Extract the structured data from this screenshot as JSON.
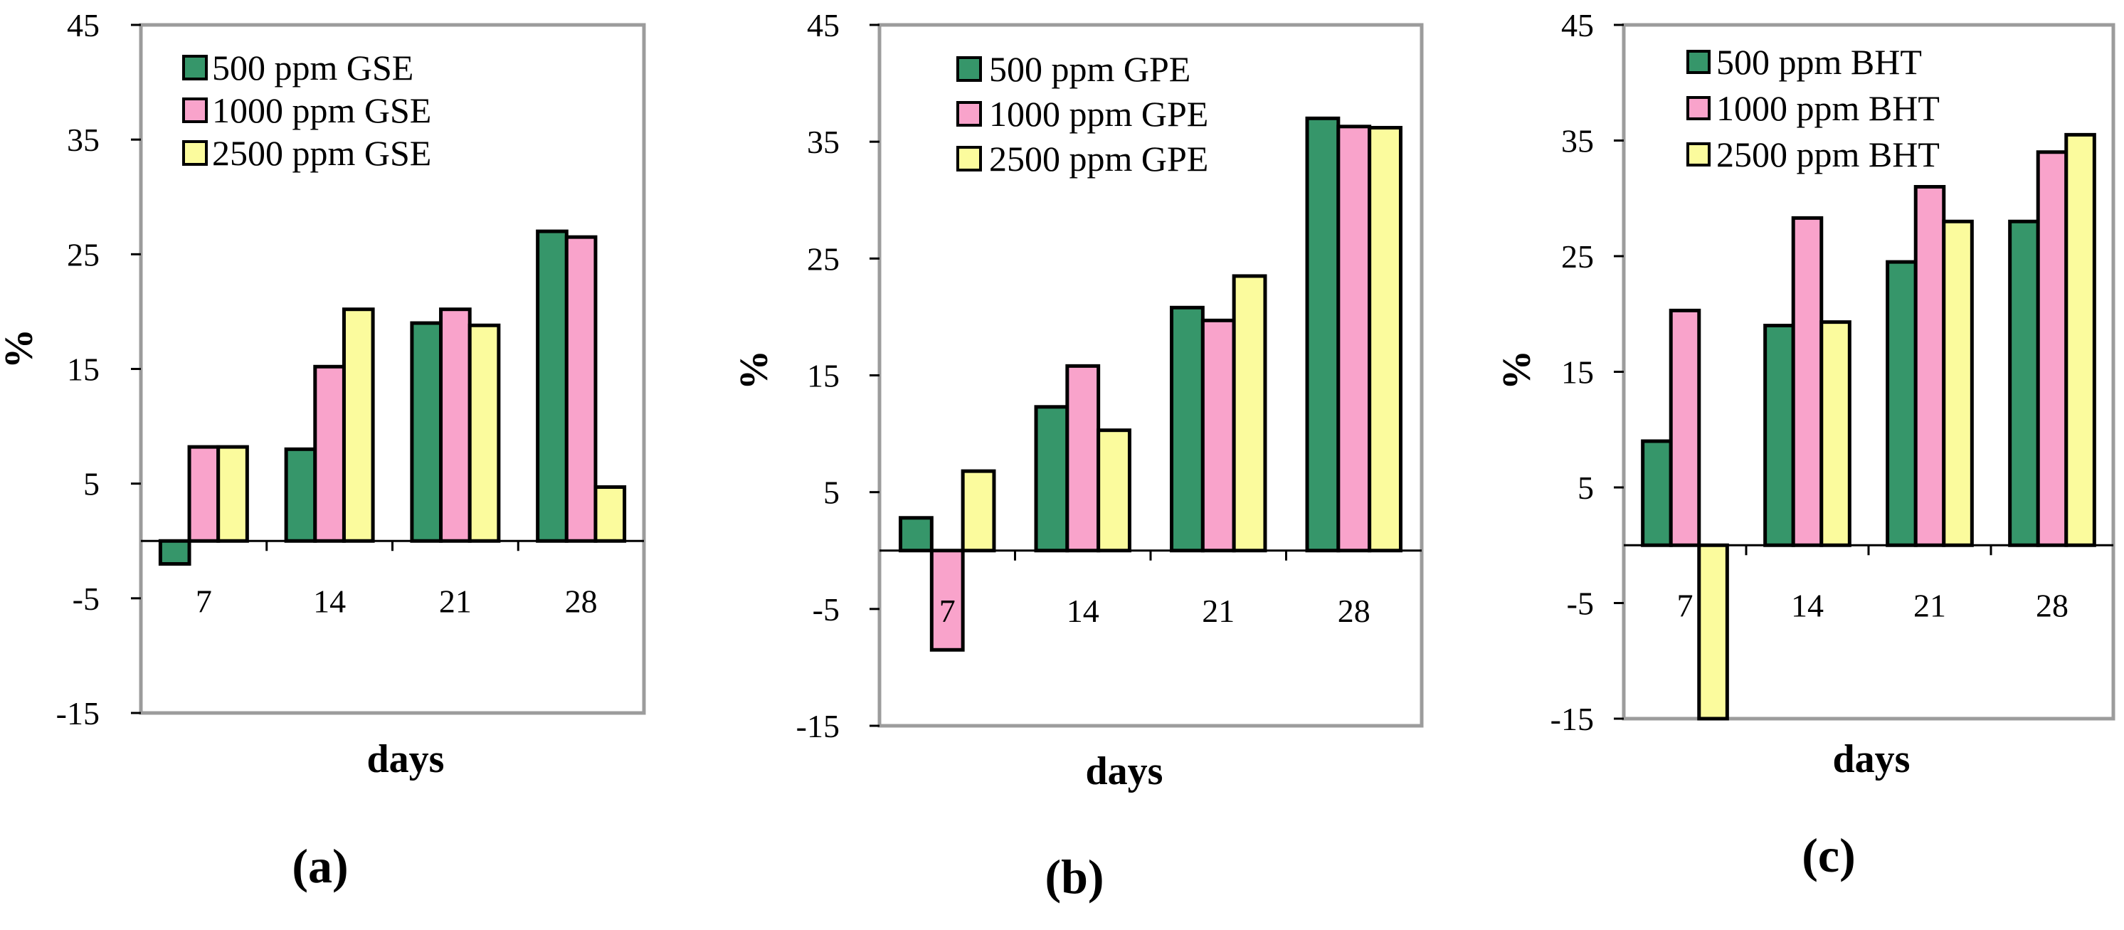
{
  "colors": {
    "series1": "#36966a",
    "series2": "#f9a3cb",
    "series3": "#fbfb9d",
    "frame": "#9c9c9c",
    "bar_outline": "#000000"
  },
  "chart_data": [
    {
      "type": "bar",
      "panel_label": "(a)",
      "xlabel": "days",
      "ylabel": "%",
      "ylim": [
        -15,
        45
      ],
      "yticks": [
        45,
        35,
        25,
        15,
        5,
        -5,
        -15
      ],
      "categories": [
        "7",
        "14",
        "21",
        "28"
      ],
      "legend_position": "top-left",
      "series": [
        {
          "name": "500 ppm GSE",
          "values": [
            -2,
            8,
            19,
            27
          ]
        },
        {
          "name": "1000 ppm GSE",
          "values": [
            8.2,
            15.2,
            20.2,
            26.5
          ]
        },
        {
          "name": "2500 ppm GSE",
          "values": [
            8.2,
            20.2,
            18.8,
            4.7
          ]
        }
      ]
    },
    {
      "type": "bar",
      "panel_label": "(b)",
      "xlabel": "days",
      "ylabel": "%",
      "ylim": [
        -15,
        45
      ],
      "yticks": [
        45,
        35,
        25,
        15,
        5,
        -5,
        -15
      ],
      "categories": [
        "7",
        "14",
        "21",
        "28"
      ],
      "legend_position": "top-left",
      "series": [
        {
          "name": "500 ppm GPE",
          "values": [
            2.8,
            12.3,
            20.8,
            37
          ]
        },
        {
          "name": "1000 ppm GPE",
          "values": [
            -8.5,
            15.8,
            19.7,
            36.3
          ]
        },
        {
          "name": "2500 ppm GPE",
          "values": [
            6.8,
            10.3,
            23.5,
            36.2
          ]
        }
      ]
    },
    {
      "type": "bar",
      "panel_label": "(c)",
      "xlabel": "days",
      "ylabel": "%",
      "ylim": [
        -15,
        45
      ],
      "yticks": [
        45,
        35,
        25,
        15,
        5,
        -5,
        -15
      ],
      "categories": [
        "7",
        "14",
        "21",
        "28"
      ],
      "legend_position": "top-left",
      "series": [
        {
          "name": "500 ppm BHT",
          "values": [
            9,
            19,
            24.5,
            28
          ]
        },
        {
          "name": "1000 ppm BHT",
          "values": [
            20.3,
            28.3,
            31,
            34
          ]
        },
        {
          "name": "2500 ppm BHT",
          "values": [
            -15,
            19.3,
            28,
            35.5
          ]
        }
      ]
    }
  ]
}
